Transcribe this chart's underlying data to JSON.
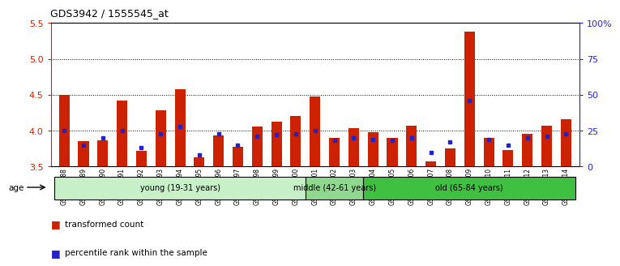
{
  "title": "GDS3942 / 1555545_at",
  "samples": [
    "GSM812988",
    "GSM812989",
    "GSM812990",
    "GSM812991",
    "GSM812992",
    "GSM812993",
    "GSM812994",
    "GSM812995",
    "GSM812996",
    "GSM812997",
    "GSM812998",
    "GSM812999",
    "GSM813000",
    "GSM813001",
    "GSM813002",
    "GSM813003",
    "GSM813004",
    "GSM813005",
    "GSM813006",
    "GSM813007",
    "GSM813008",
    "GSM813009",
    "GSM813010",
    "GSM813011",
    "GSM813012",
    "GSM813013",
    "GSM813014"
  ],
  "red_values": [
    4.5,
    3.85,
    3.87,
    4.42,
    3.72,
    4.28,
    4.58,
    3.63,
    3.93,
    3.78,
    4.06,
    4.12,
    4.2,
    4.47,
    3.9,
    4.03,
    3.98,
    3.9,
    4.07,
    3.57,
    3.75,
    5.38,
    3.9,
    3.73,
    3.95,
    4.07,
    4.16
  ],
  "blue_percentile": [
    25,
    15,
    20,
    25,
    13,
    23,
    28,
    8,
    23,
    15,
    21,
    22,
    23,
    25,
    18,
    20,
    19,
    18,
    20,
    10,
    17,
    46,
    19,
    15,
    20,
    21,
    23
  ],
  "groups": [
    {
      "label": "young (19-31 years)",
      "start": 0,
      "end": 13,
      "color": "#c8f0c8"
    },
    {
      "label": "middle (42-61 years)",
      "start": 13,
      "end": 16,
      "color": "#90d890"
    },
    {
      "label": "old (65-84 years)",
      "start": 16,
      "end": 27,
      "color": "#40c040"
    }
  ],
  "ylim_left": [
    3.5,
    5.5
  ],
  "yticks_left": [
    3.5,
    4.0,
    4.5,
    5.0,
    5.5
  ],
  "ylim_right": [
    0,
    100
  ],
  "yticks_right": [
    0,
    25,
    50,
    75,
    100
  ],
  "ytick_labels_right": [
    "0",
    "25",
    "50",
    "75",
    "100%"
  ],
  "bar_color": "#cc2200",
  "dot_color": "#2222cc",
  "background_color": "#ffffff",
  "plot_bg_color": "#ffffff",
  "legend_items": [
    "transformed count",
    "percentile rank within the sample"
  ],
  "left_axis_color": "#cc2200",
  "right_axis_color": "#2222cc",
  "bar_width": 0.55
}
